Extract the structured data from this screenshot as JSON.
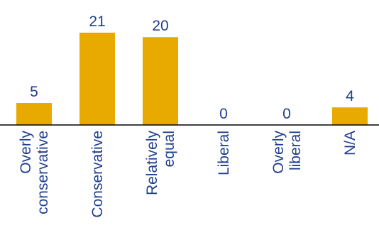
{
  "chart_data": {
    "type": "bar",
    "categories": [
      [
        "Overly",
        "conservative"
      ],
      [
        "Conservative"
      ],
      [
        "Relatively",
        "equal"
      ],
      [
        "Liberal"
      ],
      [
        "Overly",
        "liberal"
      ],
      [
        "N/A"
      ]
    ],
    "values": [
      5,
      21,
      20,
      0,
      0,
      4
    ],
    "data_labels": [
      "5",
      "21",
      "20",
      "0",
      "0",
      "4"
    ],
    "ylim": [
      0,
      21
    ],
    "grid": false,
    "title": "",
    "xlabel": "",
    "ylabel": ""
  },
  "colors": {
    "bar": "#E8A900",
    "text": "#1F3F8F",
    "axis": "#000000"
  }
}
